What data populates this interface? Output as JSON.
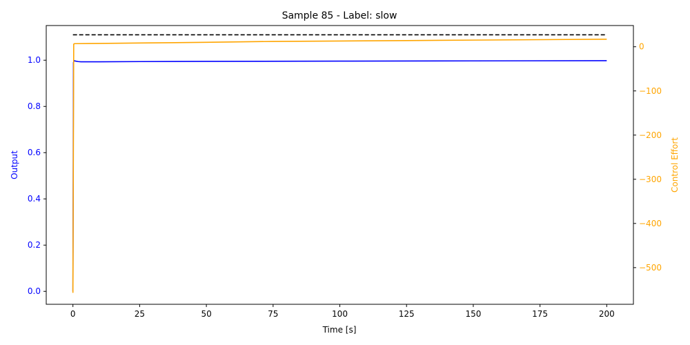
{
  "chart_data": {
    "type": "line",
    "title": "Sample 85 - Label: slow",
    "xlabel": "Time [s]",
    "ylabel_left": "Output",
    "ylabel_right": "Control Effort",
    "xlim": [
      -10,
      210
    ],
    "ylim_left": [
      -0.056,
      1.15
    ],
    "ylim_right": [
      -583,
      48
    ],
    "x_ticks": [
      0,
      25,
      50,
      75,
      100,
      125,
      150,
      175,
      200
    ],
    "y_left_ticks": [
      0.0,
      0.2,
      0.4,
      0.6,
      0.8,
      1.0
    ],
    "y_left_tick_labels": [
      "0.0",
      "0.2",
      "0.4",
      "0.6",
      "0.8",
      "1.0"
    ],
    "y_right_ticks": [
      -500,
      -400,
      -300,
      -200,
      -100,
      0
    ],
    "y_right_tick_labels": [
      "−500",
      "−400",
      "−300",
      "−200",
      "−100",
      "0"
    ],
    "grid": false,
    "colors": {
      "output": "#0000ff",
      "control": "#ffa500",
      "setpoint": "#000000",
      "left_axis": "#0000ff",
      "right_axis": "#ffa500"
    },
    "series": [
      {
        "axis": "left",
        "style": "solid",
        "x": [
          0,
          0.2,
          0.5,
          1,
          2,
          3,
          5,
          10,
          25,
          50,
          100,
          150,
          200
        ],
        "y": [
          0,
          0.99,
          0.998,
          0.996,
          0.994,
          0.993,
          0.993,
          0.993,
          0.994,
          0.995,
          0.996,
          0.997,
          0.998
        ]
      },
      {
        "axis": "left",
        "style": "dashed",
        "x": [
          0,
          200
        ],
        "y": [
          1.11,
          1.11
        ]
      },
      {
        "axis": "right",
        "style": "solid",
        "x": [
          0,
          0.3,
          0.6,
          1,
          10,
          25,
          50,
          75,
          100,
          125,
          150,
          175,
          200
        ],
        "y": [
          -557,
          6,
          7,
          7,
          7.5,
          8.5,
          10,
          12,
          13,
          14,
          15,
          16,
          17
        ]
      }
    ]
  }
}
